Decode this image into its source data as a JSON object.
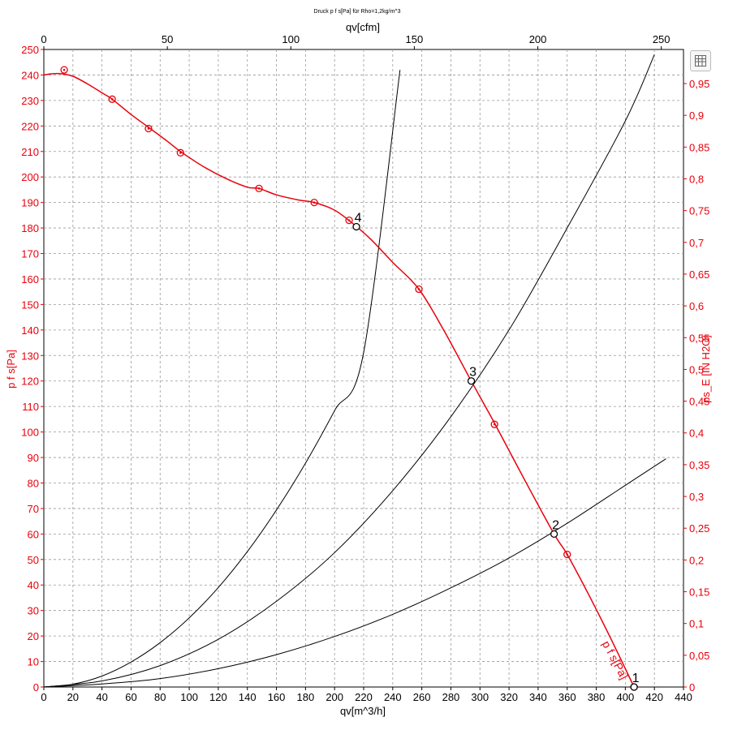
{
  "chart_data": {
    "type": "line",
    "title": "Druck p f s[Pa] für Rho=1,2kg/m^3",
    "xlabel": "qv[m^3/h]",
    "x2label": "qv[cfm]",
    "ylabel": "p f s[Pa]",
    "y2label": "ps_E [IN H2O]",
    "xlim": [
      0,
      440
    ],
    "ylim": [
      0,
      250
    ],
    "x_ticks": [
      "0",
      "20",
      "40",
      "60",
      "80",
      "100",
      "120",
      "140",
      "160",
      "180",
      "200",
      "220",
      "240",
      "260",
      "280",
      "300",
      "320",
      "340",
      "360",
      "380",
      "400",
      "420",
      "440"
    ],
    "y_ticks": [
      "0",
      "10",
      "20",
      "30",
      "40",
      "50",
      "60",
      "70",
      "80",
      "90",
      "100",
      "110",
      "120",
      "130",
      "140",
      "150",
      "160",
      "170",
      "180",
      "190",
      "200",
      "210",
      "220",
      "230",
      "240",
      "250"
    ],
    "x2_ticks": [
      "0",
      "50",
      "100",
      "150",
      "200",
      "250"
    ],
    "y2_ticks": [
      "0",
      "0,05",
      "0,1",
      "0,15",
      "0,2",
      "0,25",
      "0,3",
      "0,35",
      "0,4",
      "0,45",
      "0,5",
      "0,55",
      "0,6",
      "0,65",
      "0,7",
      "0,75",
      "0,8",
      "0,85",
      "0,9",
      "0,95"
    ],
    "grid": true,
    "series": [
      {
        "name": "p f s[Pa]",
        "color": "#e8000b",
        "x": [
          0,
          6,
          12,
          20,
          30,
          40,
          47,
          60,
          72,
          85,
          94,
          110,
          125,
          140,
          148,
          160,
          175,
          186,
          200,
          212,
          225,
          240,
          258,
          275,
          294,
          310,
          330,
          351,
          360,
          375,
          390,
          406
        ],
        "values": [
          240,
          240.5,
          240.5,
          239.5,
          236.5,
          233,
          230.5,
          224.5,
          219.5,
          214,
          210,
          204,
          199.5,
          196,
          195.5,
          193,
          191,
          190,
          187,
          182,
          175.5,
          166.5,
          156,
          140,
          120,
          103.5,
          82,
          60,
          52,
          36,
          19,
          0
        ],
        "markers_x": [
          14,
          47,
          72,
          94,
          148,
          186,
          210,
          258,
          310,
          360,
          406
        ],
        "markers_y": [
          242,
          230.5,
          219,
          209.5,
          195.5,
          190,
          183,
          156,
          103,
          52,
          0
        ]
      },
      {
        "name": "",
        "color": "#000000",
        "x": [
          0,
          20,
          40,
          60,
          80,
          100,
          120,
          140,
          160,
          180,
          200,
          220,
          245
        ],
        "values": [
          0,
          1.1,
          4.3,
          9.8,
          17.4,
          27.1,
          39,
          53.1,
          69.4,
          87.8,
          108.4,
          131.2,
          242
        ]
      },
      {
        "name": "",
        "color": "#000000",
        "x": [
          0,
          40,
          80,
          120,
          160,
          200,
          240,
          280,
          320,
          360,
          400,
          420
        ],
        "values": [
          0,
          2.4,
          8.4,
          18.7,
          33.6,
          52.7,
          77,
          106,
          140,
          180,
          222,
          248
        ]
      },
      {
        "name": "",
        "color": "#000000",
        "x": [
          0,
          40,
          80,
          120,
          160,
          200,
          240,
          280,
          320,
          360,
          400,
          428
        ],
        "values": [
          0,
          1.2,
          3.3,
          7.2,
          12.7,
          19.8,
          28.5,
          38.9,
          50.6,
          64.2,
          79.1,
          89.5
        ]
      }
    ],
    "operating_points": [
      {
        "label": "1",
        "x": 406,
        "y": 0
      },
      {
        "label": "2",
        "x": 351,
        "y": 60
      },
      {
        "label": "3",
        "x": 294,
        "y": 120
      },
      {
        "label": "4",
        "x": 215,
        "y": 180.5
      }
    ],
    "annotations": [
      {
        "text": "p f s[Pa]",
        "x": 404,
        "y": 5,
        "color": "#e8000b"
      }
    ]
  },
  "ui": {
    "export_icon": "export-grid-icon"
  }
}
